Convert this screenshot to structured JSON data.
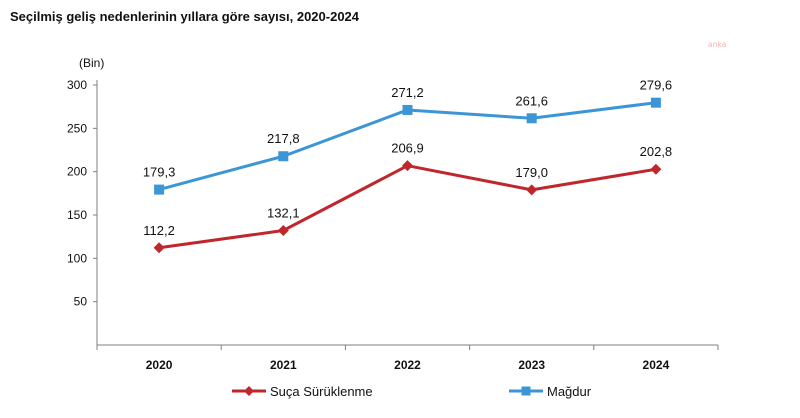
{
  "page": {
    "title": "Seçilmiş geliş nedenlerinin yıllara göre sayısı, 2020-2024",
    "watermark": "anka"
  },
  "chart_data": {
    "type": "line",
    "title": "Seçilmiş geliş nedenlerinin yıllara göre sayısı, 2020-2024",
    "unit_label": "(Bin)",
    "categories": [
      "2020",
      "2021",
      "2022",
      "2023",
      "2024"
    ],
    "series": [
      {
        "name": "Suça Sürüklenme",
        "values": [
          112.2,
          132.1,
          206.9,
          179.0,
          202.8
        ],
        "labels": [
          "112,2",
          "132,1",
          "206,9",
          "179,0",
          "202,8"
        ],
        "color": "#c0272d",
        "marker": "diamond"
      },
      {
        "name": "Mağdur",
        "values": [
          179.3,
          217.8,
          271.2,
          261.6,
          279.6
        ],
        "labels": [
          "179,3",
          "217,8",
          "271,2",
          "261,6",
          "279,6"
        ],
        "color": "#3c96d6",
        "marker": "square"
      }
    ],
    "yticks": [
      50,
      100,
      150,
      200,
      250,
      300
    ],
    "ylim": [
      0,
      300
    ],
    "grid": false,
    "legend_position": "bottom"
  }
}
